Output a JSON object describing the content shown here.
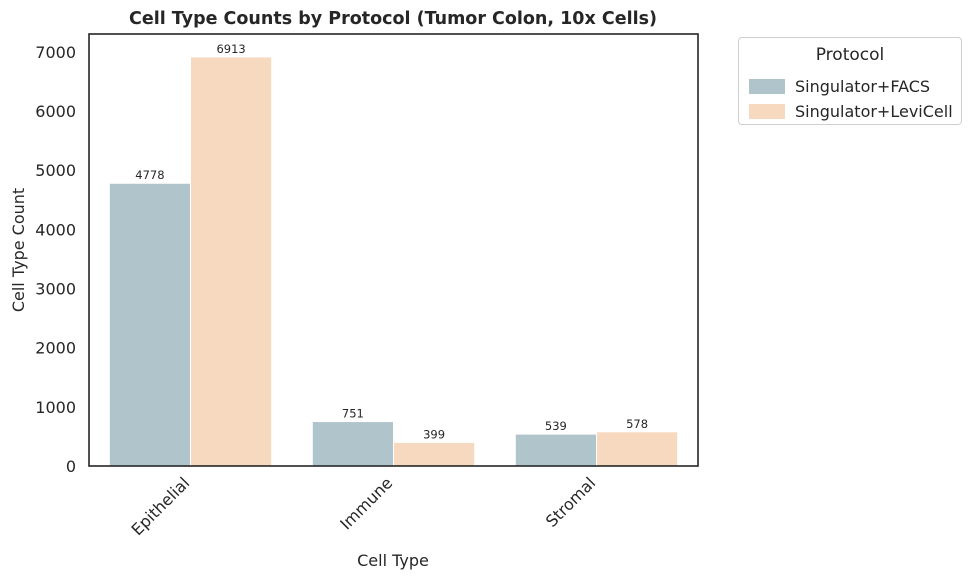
{
  "chart_data": {
    "type": "bar",
    "title": "Cell Type Counts by Protocol (Tumor Colon, 10x Cells)",
    "xlabel": "Cell Type",
    "ylabel": "Cell Type Count",
    "categories": [
      "Epithelial",
      "Immune",
      "Stromal"
    ],
    "series": [
      {
        "name": "Singulator+FACS",
        "color": "#b0c4cc",
        "values": [
          4778,
          751,
          539
        ]
      },
      {
        "name": "Singulator+LeviCell",
        "color": "#f7d9bf",
        "values": [
          6913,
          399,
          578
        ]
      }
    ],
    "ylim": [
      0,
      7300
    ],
    "yticks": [
      0,
      1000,
      2000,
      3000,
      4000,
      5000,
      6000,
      7000
    ],
    "grid": false,
    "legend": {
      "title": "Protocol",
      "placement": "outside-top-right"
    }
  }
}
